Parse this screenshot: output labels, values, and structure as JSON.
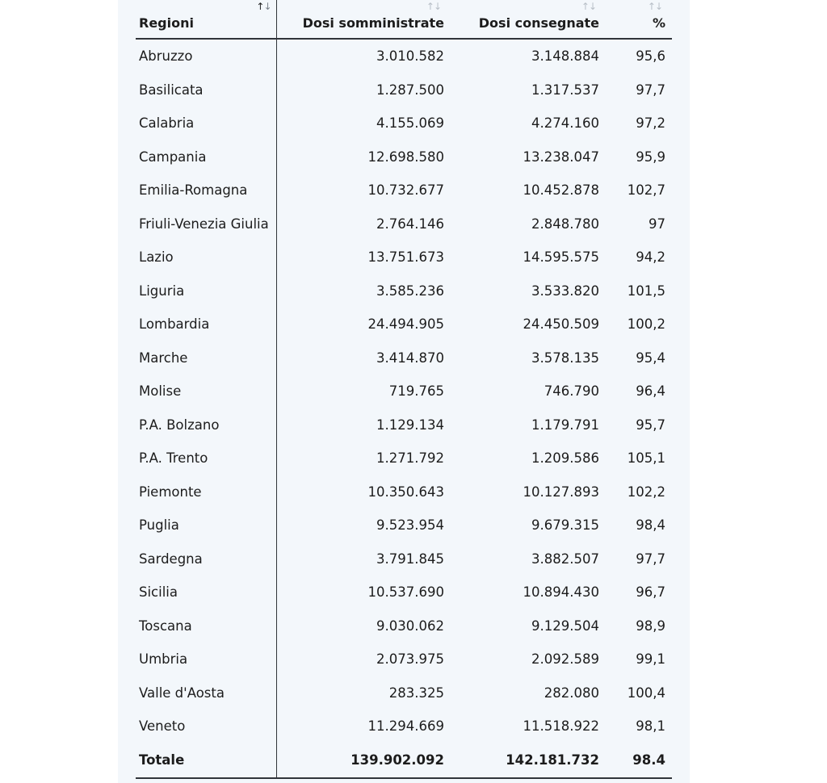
{
  "table": {
    "headers": {
      "region": "Regioni",
      "administered": "Dosi somministrate",
      "delivered": "Dosi consegnate",
      "percent": "%"
    },
    "sort_icon": "↑↓",
    "rows": [
      {
        "region": "Abruzzo",
        "administered": "3.010.582",
        "delivered": "3.148.884",
        "percent": "95,6"
      },
      {
        "region": "Basilicata",
        "administered": "1.287.500",
        "delivered": "1.317.537",
        "percent": "97,7"
      },
      {
        "region": "Calabria",
        "administered": "4.155.069",
        "delivered": "4.274.160",
        "percent": "97,2"
      },
      {
        "region": "Campania",
        "administered": "12.698.580",
        "delivered": "13.238.047",
        "percent": "95,9"
      },
      {
        "region": "Emilia-Romagna",
        "administered": "10.732.677",
        "delivered": "10.452.878",
        "percent": "102,7"
      },
      {
        "region": "Friuli-Venezia Giulia",
        "administered": "2.764.146",
        "delivered": "2.848.780",
        "percent": "97"
      },
      {
        "region": "Lazio",
        "administered": "13.751.673",
        "delivered": "14.595.575",
        "percent": "94,2"
      },
      {
        "region": "Liguria",
        "administered": "3.585.236",
        "delivered": "3.533.820",
        "percent": "101,5"
      },
      {
        "region": "Lombardia",
        "administered": "24.494.905",
        "delivered": "24.450.509",
        "percent": "100,2"
      },
      {
        "region": "Marche",
        "administered": "3.414.870",
        "delivered": "3.578.135",
        "percent": "95,4"
      },
      {
        "region": "Molise",
        "administered": "719.765",
        "delivered": "746.790",
        "percent": "96,4"
      },
      {
        "region": "P.A. Bolzano",
        "administered": "1.129.134",
        "delivered": "1.179.791",
        "percent": "95,7"
      },
      {
        "region": "P.A. Trento",
        "administered": "1.271.792",
        "delivered": "1.209.586",
        "percent": "105,1"
      },
      {
        "region": "Piemonte",
        "administered": "10.350.643",
        "delivered": "10.127.893",
        "percent": "102,2"
      },
      {
        "region": "Puglia",
        "administered": "9.523.954",
        "delivered": "9.679.315",
        "percent": "98,4"
      },
      {
        "region": "Sardegna",
        "administered": "3.791.845",
        "delivered": "3.882.507",
        "percent": "97,7"
      },
      {
        "region": "Sicilia",
        "administered": "10.537.690",
        "delivered": "10.894.430",
        "percent": "96,7"
      },
      {
        "region": "Toscana",
        "administered": "9.030.062",
        "delivered": "9.129.504",
        "percent": "98,9"
      },
      {
        "region": "Umbria",
        "administered": "2.073.975",
        "delivered": "2.092.589",
        "percent": "99,1"
      },
      {
        "region": "Valle d'Aosta",
        "administered": "283.325",
        "delivered": "282.080",
        "percent": "100,4"
      },
      {
        "region": "Veneto",
        "administered": "11.294.669",
        "delivered": "11.518.922",
        "percent": "98,1"
      }
    ],
    "total": {
      "region": "Totale",
      "administered": "139.902.092",
      "delivered": "142.181.732",
      "percent": "98.4"
    }
  }
}
